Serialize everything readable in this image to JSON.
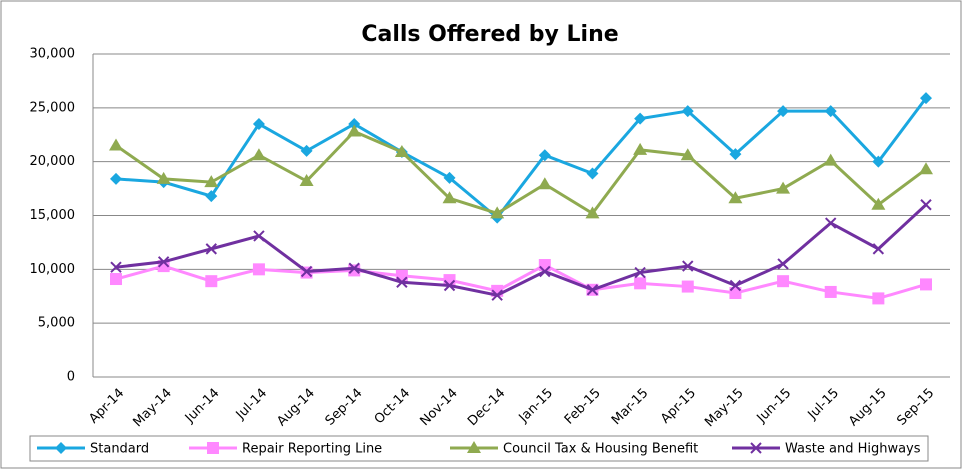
{
  "chart_data": {
    "type": "line",
    "title": "Calls Offered by Line",
    "categories": [
      "Apr-14",
      "May-14",
      "Jun-14",
      "Jul-14",
      "Aug-14",
      "Sep-14",
      "Oct-14",
      "Nov-14",
      "Dec-14",
      "Jan-15",
      "Feb-15",
      "Mar-15",
      "Apr-15",
      "May-15",
      "Jun-15",
      "Jul-15",
      "Aug-15",
      "Sep-15"
    ],
    "series": [
      {
        "name": "Standard",
        "color": "#1aa7e0",
        "marker": "diamond",
        "values": [
          18400,
          18100,
          16800,
          23500,
          21000,
          23500,
          20900,
          18500,
          14800,
          20600,
          18900,
          24000,
          24700,
          20700,
          24700,
          24700,
          20000,
          25900
        ]
      },
      {
        "name": "Repair Reporting Line",
        "color": "#ff88ff",
        "marker": "square",
        "values": [
          9100,
          10300,
          8900,
          10000,
          9700,
          9900,
          9400,
          9000,
          8000,
          10400,
          8100,
          8700,
          8400,
          7800,
          8900,
          7900,
          7300,
          8600
        ]
      },
      {
        "name": "Council Tax & Housing Benefit",
        "color": "#8faa50",
        "marker": "triangle",
        "values": [
          21500,
          18400,
          18100,
          20600,
          18200,
          22800,
          20900,
          16600,
          15200,
          17900,
          15200,
          21100,
          20600,
          16600,
          17500,
          20100,
          16000,
          19300
        ]
      },
      {
        "name": "Waste and Highways",
        "color": "#7030a0",
        "marker": "x",
        "values": [
          10200,
          10700,
          11900,
          13100,
          9800,
          10100,
          8800,
          8500,
          7600,
          9800,
          8100,
          9700,
          10300,
          8500,
          10500,
          14300,
          11900,
          16000
        ]
      }
    ],
    "ylim": [
      0,
      30000
    ],
    "yticks": [
      0,
      {
        "value": 5000,
        "label": "5,000"
      },
      {
        "value": 10000,
        "label": "10,000"
      },
      {
        "value": 15000,
        "label": "15,000"
      },
      {
        "value": 20000,
        "label": "20,000"
      },
      {
        "value": 25000,
        "label": "25,000"
      },
      {
        "value": 30000,
        "label": "30,000"
      }
    ],
    "grid": true,
    "legend": "bottom"
  }
}
